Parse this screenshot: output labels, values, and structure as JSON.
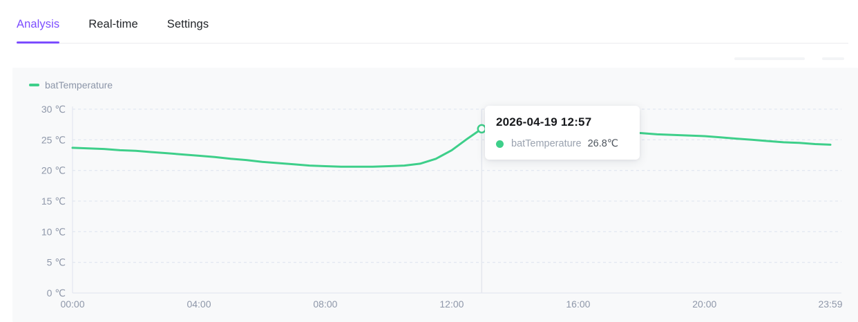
{
  "tabs": [
    {
      "label": "Analysis",
      "active": true
    },
    {
      "label": "Real-time",
      "active": false
    },
    {
      "label": "Settings",
      "active": false
    }
  ],
  "panel": {
    "legend": {
      "label": "batTemperature"
    }
  },
  "tooltip": {
    "title": "2026-04-19 12:57",
    "series": "batTemperature",
    "value": "26.8℃"
  },
  "colors": {
    "accent_purple": "#7c4dff",
    "series_green": "#3ecf8a",
    "axis_label_gray": "#8e97a9",
    "grid_line": "#dce2ee",
    "panel_background": "#f8f9fa"
  },
  "chart_data": {
    "type": "line",
    "title": "",
    "xlabel": "",
    "ylabel": "",
    "unit": "℃",
    "x_range_hours": [
      0,
      23.983
    ],
    "y_range": [
      0,
      30
    ],
    "x_ticks": [
      {
        "h": 0,
        "label": "00:00"
      },
      {
        "h": 4,
        "label": "04:00"
      },
      {
        "h": 8,
        "label": "08:00"
      },
      {
        "h": 12,
        "label": "12:00"
      },
      {
        "h": 16,
        "label": "16:00"
      },
      {
        "h": 20,
        "label": "20:00"
      },
      {
        "h": 23.983,
        "label": "23:59"
      }
    ],
    "y_ticks": [
      {
        "v": 0,
        "label": "0 ℃"
      },
      {
        "v": 5,
        "label": "5 ℃"
      },
      {
        "v": 10,
        "label": "10 ℃"
      },
      {
        "v": 15,
        "label": "15 ℃"
      },
      {
        "v": 20,
        "label": "20 ℃"
      },
      {
        "v": 25,
        "label": "25 ℃"
      },
      {
        "v": 30,
        "label": "30 ℃"
      }
    ],
    "grid": "horizontal-dashed",
    "legend_position": "top-left",
    "series": [
      {
        "name": "batTemperature",
        "color": "#3ecf8a",
        "points_h_temp": [
          [
            0,
            23.7
          ],
          [
            0.5,
            23.6
          ],
          [
            1,
            23.5
          ],
          [
            1.5,
            23.3
          ],
          [
            2,
            23.2
          ],
          [
            2.5,
            23.0
          ],
          [
            3,
            22.8
          ],
          [
            3.5,
            22.6
          ],
          [
            4,
            22.4
          ],
          [
            4.5,
            22.2
          ],
          [
            5,
            21.9
          ],
          [
            5.5,
            21.7
          ],
          [
            6,
            21.4
          ],
          [
            6.5,
            21.2
          ],
          [
            7,
            21.0
          ],
          [
            7.5,
            20.8
          ],
          [
            8,
            20.7
          ],
          [
            8.5,
            20.6
          ],
          [
            9,
            20.6
          ],
          [
            9.5,
            20.6
          ],
          [
            10,
            20.7
          ],
          [
            10.5,
            20.8
          ],
          [
            11,
            21.1
          ],
          [
            11.5,
            21.9
          ],
          [
            12,
            23.3
          ],
          [
            12.5,
            25.2
          ],
          [
            12.95,
            26.8
          ],
          [
            13.5,
            27.0
          ],
          [
            14,
            27.1
          ],
          [
            14.5,
            27.1
          ],
          [
            15,
            27.0
          ],
          [
            15.5,
            26.9
          ],
          [
            16,
            26.7
          ],
          [
            16.5,
            26.5
          ],
          [
            17,
            26.4
          ],
          [
            17.5,
            26.2
          ],
          [
            18,
            26.1
          ],
          [
            18.5,
            25.9
          ],
          [
            19,
            25.8
          ],
          [
            19.5,
            25.7
          ],
          [
            20,
            25.6
          ],
          [
            20.5,
            25.4
          ],
          [
            21,
            25.2
          ],
          [
            21.5,
            25.0
          ],
          [
            22,
            24.8
          ],
          [
            22.5,
            24.6
          ],
          [
            23,
            24.5
          ],
          [
            23.5,
            24.3
          ],
          [
            23.983,
            24.2
          ]
        ]
      }
    ],
    "hover_point": {
      "h": 12.95,
      "temp": 26.8,
      "date_label": "2026-04-19",
      "time_label": "12:57"
    }
  }
}
